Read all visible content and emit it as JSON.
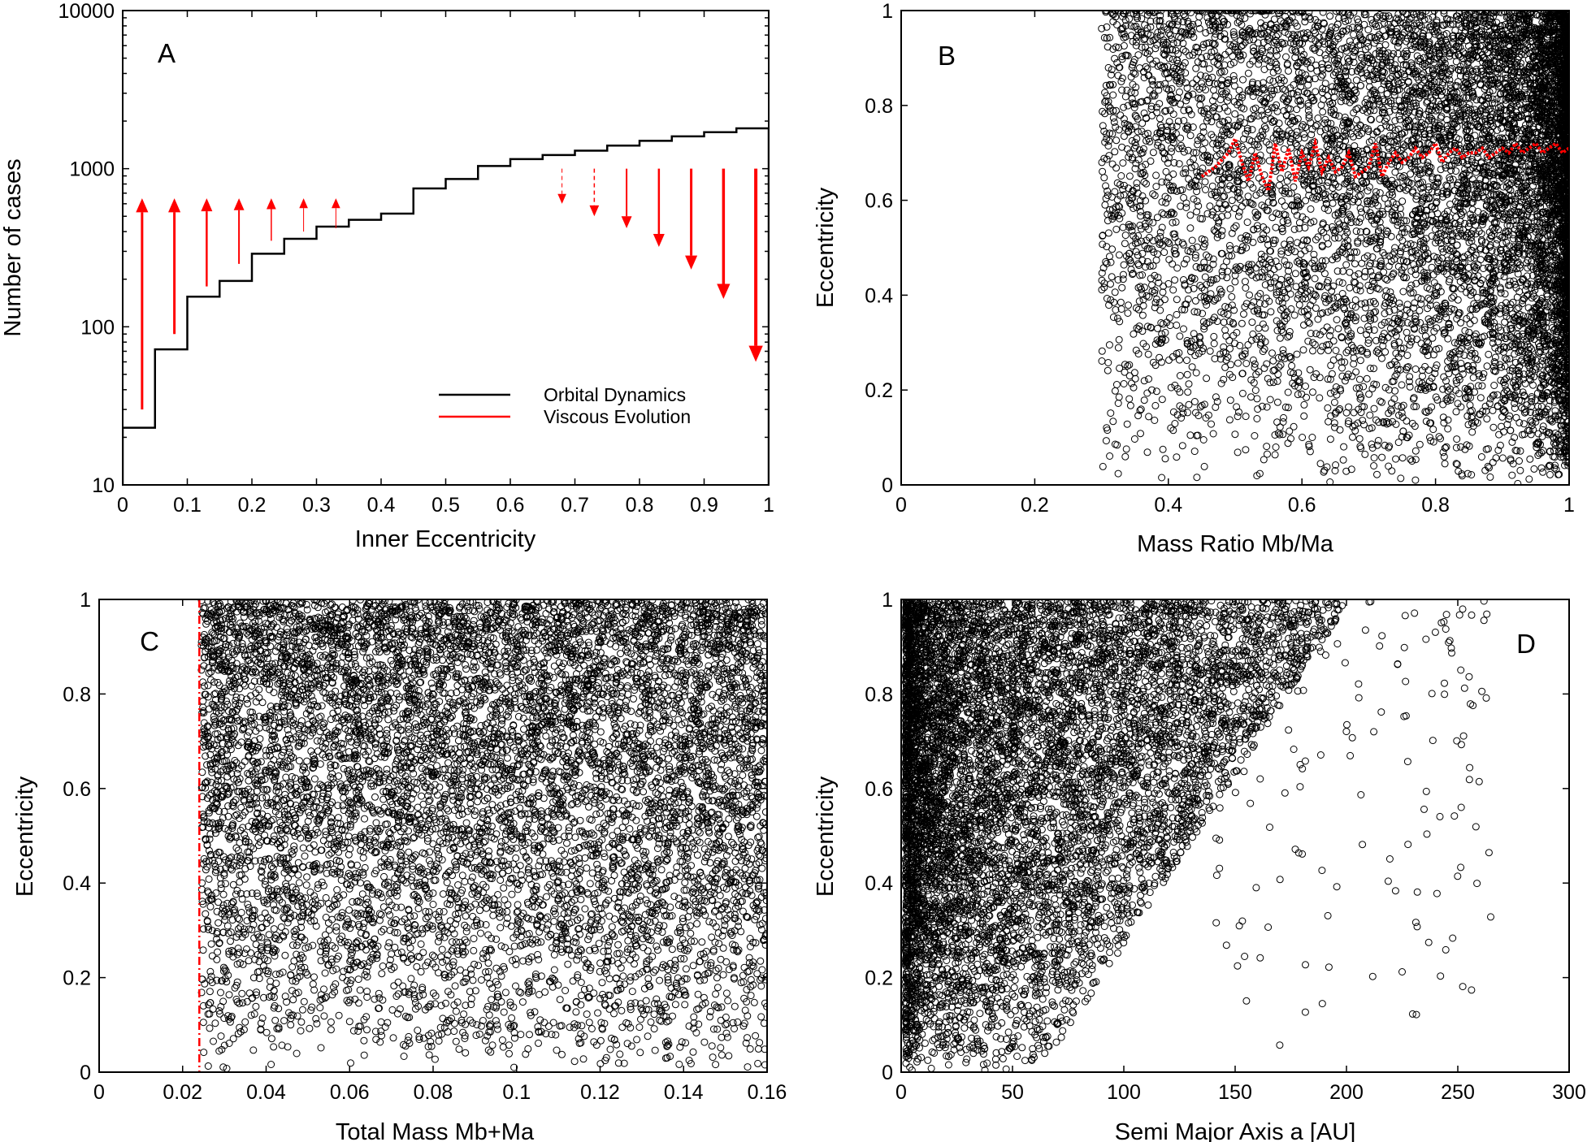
{
  "chart_data": [
    {
      "id": "A",
      "type": "histogram",
      "panel_label": "A",
      "xlabel": "Inner Eccentricity",
      "ylabel": "Number of cases",
      "xlim": [
        0,
        1
      ],
      "ylim": [
        10,
        10000
      ],
      "yscale": "log",
      "xticks": [
        "0",
        "0.1",
        "0.2",
        "0.3",
        "0.4",
        "0.5",
        "0.6",
        "0.7",
        "0.8",
        "0.9",
        "1"
      ],
      "yticks": [
        "10",
        "100",
        "1000",
        "10000"
      ],
      "legend": [
        {
          "label": "Orbital Dynamics",
          "color": "#000000"
        },
        {
          "label": "Viscous Evolution",
          "color": "#ff0000"
        }
      ],
      "bin_edges": [
        0,
        0.05,
        0.1,
        0.15,
        0.2,
        0.25,
        0.3,
        0.35,
        0.4,
        0.45,
        0.5,
        0.55,
        0.6,
        0.65,
        0.7,
        0.75,
        0.8,
        0.85,
        0.9,
        0.95,
        1.0
      ],
      "counts": [
        23,
        72,
        155,
        195,
        290,
        360,
        430,
        475,
        520,
        750,
        860,
        1040,
        1150,
        1220,
        1300,
        1400,
        1500,
        1600,
        1700,
        1800
      ],
      "arrows": [
        {
          "x": 0.03,
          "from": 30,
          "to": 650,
          "style": "solid",
          "weight": 3
        },
        {
          "x": 0.08,
          "from": 90,
          "to": 650,
          "style": "solid",
          "weight": 3
        },
        {
          "x": 0.13,
          "from": 180,
          "to": 650,
          "style": "solid",
          "weight": 2.5
        },
        {
          "x": 0.18,
          "from": 250,
          "to": 650,
          "style": "solid",
          "weight": 2
        },
        {
          "x": 0.23,
          "from": 350,
          "to": 650,
          "style": "solid",
          "weight": 1.5
        },
        {
          "x": 0.28,
          "from": 400,
          "to": 650,
          "style": "solid",
          "weight": 1
        },
        {
          "x": 0.33,
          "from": 420,
          "to": 650,
          "style": "solid",
          "weight": 1
        },
        {
          "x": 0.68,
          "from": 1000,
          "to": 600,
          "style": "dashed",
          "weight": 1
        },
        {
          "x": 0.73,
          "from": 1000,
          "to": 500,
          "style": "dashed",
          "weight": 1.5
        },
        {
          "x": 0.78,
          "from": 1000,
          "to": 420,
          "style": "solid",
          "weight": 2
        },
        {
          "x": 0.83,
          "from": 1000,
          "to": 320,
          "style": "solid",
          "weight": 2.5
        },
        {
          "x": 0.88,
          "from": 1000,
          "to": 230,
          "style": "solid",
          "weight": 3
        },
        {
          "x": 0.93,
          "from": 1000,
          "to": 150,
          "style": "solid",
          "weight": 3.5
        },
        {
          "x": 0.98,
          "from": 1000,
          "to": 60,
          "style": "solid",
          "weight": 4
        }
      ]
    },
    {
      "id": "B",
      "type": "scatter",
      "panel_label": "B",
      "xlabel": "Mass Ratio Mb/Ma",
      "ylabel": "Eccentricity",
      "xlim": [
        0,
        1
      ],
      "ylim": [
        0,
        1
      ],
      "xticks": [
        "0",
        "0.2",
        "0.4",
        "0.6",
        "0.8",
        "1"
      ],
      "yticks": [
        "0",
        "0.2",
        "0.4",
        "0.6",
        "0.8",
        "1"
      ],
      "n_points": 9000,
      "x_range": [
        0.3,
        1.0
      ],
      "density": "increasing toward x=1 and e=1",
      "mean_curve": {
        "color": "#ff0000",
        "style": "dotted",
        "x": [
          0.45,
          0.47,
          0.49,
          0.5,
          0.51,
          0.52,
          0.53,
          0.54,
          0.55,
          0.56,
          0.57,
          0.58,
          0.59,
          0.6,
          0.61,
          0.62,
          0.63,
          0.64,
          0.65,
          0.66,
          0.67,
          0.68,
          0.69,
          0.7,
          0.71,
          0.72,
          0.73,
          0.74,
          0.75,
          0.76,
          0.77,
          0.78,
          0.79,
          0.8,
          0.81,
          0.82,
          0.83,
          0.84,
          0.85,
          0.86,
          0.87,
          0.88,
          0.89,
          0.9,
          0.91,
          0.92,
          0.93,
          0.94,
          0.95,
          0.96,
          0.97,
          0.98,
          0.99,
          1.0
        ],
        "y": [
          0.65,
          0.67,
          0.7,
          0.73,
          0.68,
          0.64,
          0.7,
          0.65,
          0.62,
          0.72,
          0.66,
          0.71,
          0.64,
          0.7,
          0.67,
          0.72,
          0.66,
          0.69,
          0.66,
          0.67,
          0.7,
          0.65,
          0.66,
          0.67,
          0.72,
          0.65,
          0.68,
          0.7,
          0.68,
          0.69,
          0.71,
          0.69,
          0.7,
          0.72,
          0.68,
          0.7,
          0.71,
          0.69,
          0.7,
          0.7,
          0.71,
          0.69,
          0.7,
          0.71,
          0.7,
          0.72,
          0.7,
          0.71,
          0.72,
          0.7,
          0.71,
          0.72,
          0.7,
          0.71
        ]
      }
    },
    {
      "id": "C",
      "type": "scatter",
      "panel_label": "C",
      "xlabel": "Total Mass Mb+Ma",
      "ylabel": "Eccentricity",
      "xlim": [
        0,
        0.16
      ],
      "ylim": [
        0,
        1
      ],
      "xticks": [
        "0",
        "0.02",
        "0.04",
        "0.06",
        "0.08",
        "0.1",
        "0.12",
        "0.14",
        "0.16"
      ],
      "yticks": [
        "0",
        "0.2",
        "0.4",
        "0.6",
        "0.8",
        "1"
      ],
      "n_points": 8500,
      "x_range": [
        0.0245,
        0.16
      ],
      "threshold_line": {
        "x": 0.024,
        "color": "#ff0000",
        "style": "dash-dot"
      }
    },
    {
      "id": "D",
      "type": "scatter",
      "panel_label": "D",
      "xlabel": "Semi Major Axis a [AU]",
      "ylabel": "Eccentricity",
      "xlim": [
        0,
        300
      ],
      "ylim": [
        0,
        1
      ],
      "xticks": [
        "0",
        "50",
        "100",
        "150",
        "200",
        "250",
        "300"
      ],
      "yticks": [
        "0",
        "0.2",
        "0.4",
        "0.6",
        "0.8",
        "1"
      ],
      "n_points": 8500,
      "x_range": [
        2,
        265
      ],
      "density": "concentrated at small a and high e"
    }
  ]
}
